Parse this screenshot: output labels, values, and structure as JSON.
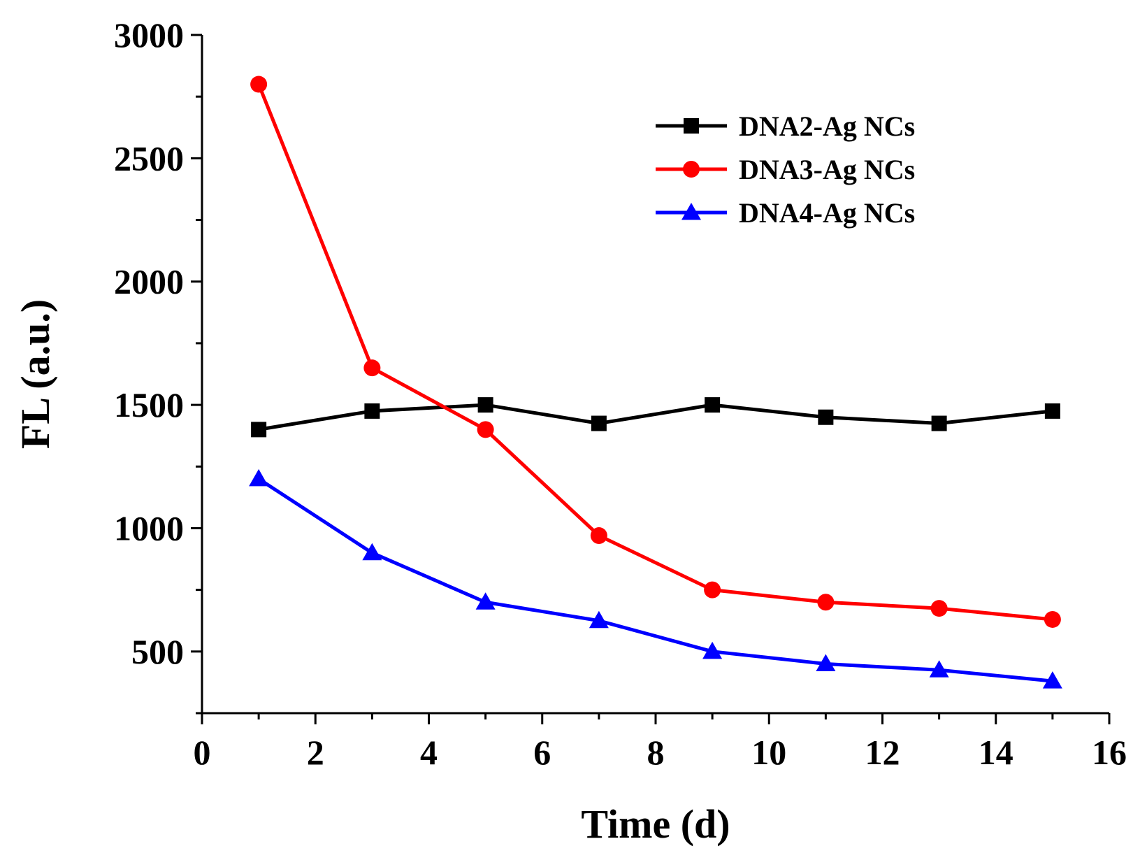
{
  "chart_data": {
    "type": "line",
    "title": "",
    "xlabel": "Time (d)",
    "ylabel": "FL (a.u.)",
    "xlim": [
      0,
      16
    ],
    "ylim": [
      250,
      3000
    ],
    "x_ticks": [
      0,
      2,
      4,
      6,
      8,
      10,
      12,
      14,
      16
    ],
    "y_ticks": [
      500,
      1000,
      1500,
      2000,
      2500,
      3000
    ],
    "x_tick_labels": [
      "0",
      "2",
      "4",
      "6",
      "8",
      "10",
      "12",
      "14",
      "16"
    ],
    "y_tick_labels": [
      "500",
      "1000",
      "1500",
      "2000",
      "2500",
      "3000"
    ],
    "grid": false,
    "legend_position": "top-right",
    "x": [
      1,
      3,
      5,
      7,
      9,
      11,
      13,
      15
    ],
    "series": [
      {
        "name": "DNA2-Ag NCs",
        "color": "#000000",
        "marker": "square",
        "values": [
          1400,
          1475,
          1500,
          1425,
          1500,
          1450,
          1425,
          1475
        ]
      },
      {
        "name": "DNA3-Ag NCs",
        "color": "#ff0000",
        "marker": "circle",
        "values": [
          2800,
          1650,
          1400,
          970,
          750,
          700,
          675,
          630
        ]
      },
      {
        "name": "DNA4-Ag NCs",
        "color": "#0000ff",
        "marker": "triangle",
        "values": [
          1200,
          900,
          700,
          625,
          500,
          450,
          425,
          380
        ]
      }
    ]
  }
}
